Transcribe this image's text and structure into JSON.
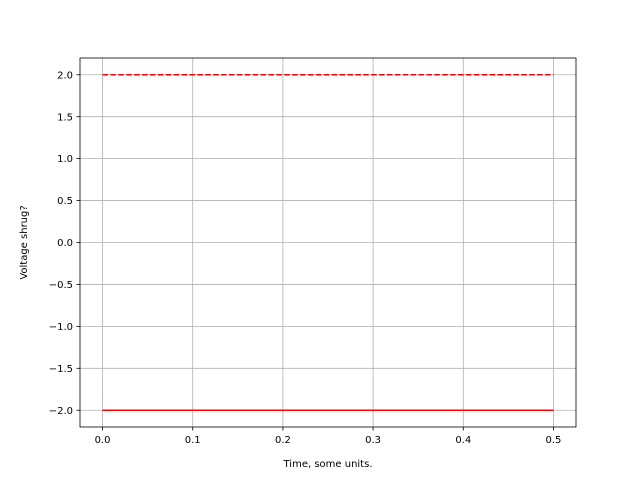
{
  "chart_data": {
    "type": "line",
    "title": "",
    "xlabel": "Time, some units.",
    "ylabel": "Voltage shrug?",
    "xlim": [
      -0.025,
      0.525
    ],
    "ylim": [
      -2.2,
      2.2
    ],
    "grid": true,
    "xticks": [
      0.0,
      0.1,
      0.2,
      0.3,
      0.4,
      0.5
    ],
    "xtick_labels": [
      "0.0",
      "0.1",
      "0.2",
      "0.3",
      "0.4",
      "0.5"
    ],
    "yticks": [
      -2.0,
      -1.5,
      -1.0,
      -0.5,
      0.0,
      0.5,
      1.0,
      1.5,
      2.0
    ],
    "ytick_labels": [
      "−2.0",
      "−1.5",
      "−1.0",
      "−0.5",
      "0.0",
      "0.5",
      "1.0",
      "1.5",
      "2.0"
    ],
    "series": [
      {
        "x": [
          0.0,
          0.5
        ],
        "y": [
          2.0,
          2.0
        ],
        "color": "#ff0000",
        "linestyle": "dashed"
      },
      {
        "x": [
          0.0,
          0.5
        ],
        "y": [
          -2.0,
          -2.0
        ],
        "color": "#ff0000",
        "linestyle": "solid"
      }
    ]
  }
}
